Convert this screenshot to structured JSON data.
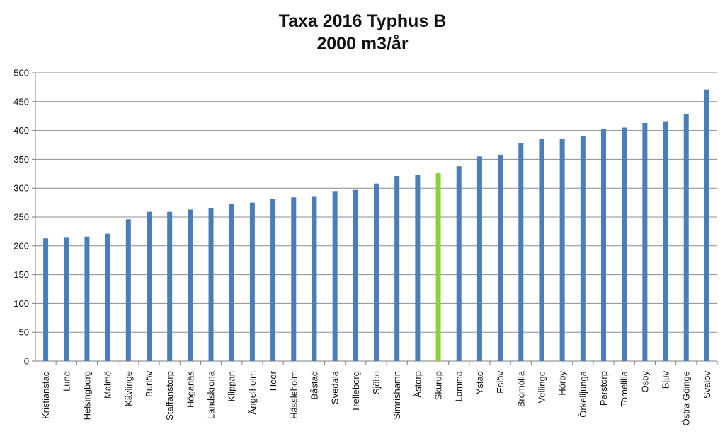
{
  "chart_data": {
    "type": "bar",
    "title": "Taxa 2016 Typhus B",
    "subtitle": "2000 m3/år",
    "xlabel": "",
    "ylabel": "",
    "ylim": [
      0,
      500
    ],
    "yticks": [
      0,
      50,
      100,
      150,
      200,
      250,
      300,
      350,
      400,
      450,
      500
    ],
    "grid": true,
    "legend": "none",
    "categories": [
      "Kristianstad",
      "Lund",
      "Helsingborg",
      "Malmö",
      "Kävlinge",
      "Burlöv",
      "Staffanstorp",
      "Höganäs",
      "Landskrona",
      "Klippan",
      "Ängelholm",
      "Höör",
      "Hässleholm",
      "Båstad",
      "Svedala",
      "Trelleborg",
      "Sjöbo",
      "Simrishamn",
      "Åstorp",
      "Skurup",
      "Lomma",
      "Ystad",
      "Eslöv",
      "Bromölla",
      "Vellinge",
      "Hörby",
      "Örkelljunga",
      "Perstorp",
      "Tomelilla",
      "Osby",
      "Bjuv",
      "Östra Göinge",
      "Svalöv"
    ],
    "values": [
      213,
      214,
      216,
      221,
      246,
      259,
      259,
      263,
      265,
      273,
      275,
      281,
      284,
      285,
      295,
      297,
      308,
      321,
      323,
      326,
      338,
      355,
      358,
      378,
      385,
      386,
      390,
      402,
      405,
      413,
      416,
      428,
      471
    ],
    "highlight": "Skurup",
    "colors": {
      "bar": "#4a7ebb",
      "highlight": "#8fce3e",
      "grid": "#8c8c8c",
      "axis": "#7f7f7f"
    }
  }
}
